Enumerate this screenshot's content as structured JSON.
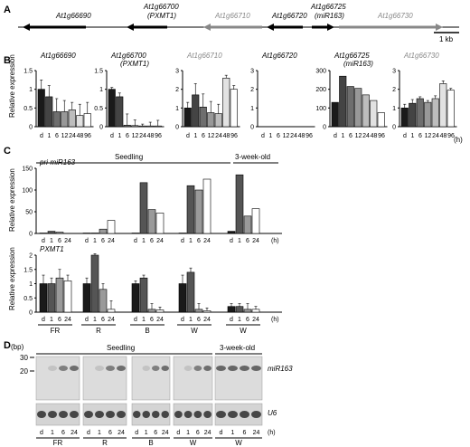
{
  "panels": {
    "A": "A",
    "B": "B",
    "C": "C",
    "D": "D"
  },
  "panelA": {
    "genes": [
      {
        "label": "At1g66690",
        "sub": "",
        "color": "#000000",
        "dir": "left"
      },
      {
        "label": "At1g66700",
        "sub": "(PXMT1)",
        "color": "#000000",
        "dir": "left"
      },
      {
        "label": "At1g66710",
        "sub": "",
        "color": "#888888",
        "dir": "left"
      },
      {
        "label": "At1g66720",
        "sub": "",
        "color": "#000000",
        "dir": "left"
      },
      {
        "label": "At1g66725",
        "sub": "(miR163)",
        "color": "#000000",
        "dir": "right"
      },
      {
        "label": "At1g66730",
        "sub": "",
        "color": "#888888",
        "dir": "right"
      }
    ],
    "scale_label": "1 kb"
  },
  "panelB": {
    "ylabel": "Relative expression",
    "xunit": "(h)",
    "time_labels": [
      "d",
      "1",
      "6",
      "12",
      "24",
      "48",
      "96"
    ],
    "bar_colors": [
      "#1a1a1a",
      "#444444",
      "#6e6e6e",
      "#989898",
      "#bdbdbd",
      "#e2e2e2",
      "#ffffff"
    ]
  },
  "panelC": {
    "top_headers": {
      "seedling": "Seedling",
      "three_week": "3-week-old"
    },
    "ylabel": "Relative expression",
    "xunit": "(h)",
    "time_labels": [
      "d",
      "1",
      "6",
      "24"
    ],
    "group_labels": [
      "FR",
      "R",
      "B",
      "W",
      "W"
    ],
    "bar_colors": [
      "#1a1a1a",
      "#555555",
      "#9a9a9a",
      "#ffffff"
    ],
    "chart_titles": [
      "pri-miR163",
      "PXMT1"
    ]
  },
  "panelD": {
    "bp_label": "(bp)",
    "bp_ticks": [
      "30",
      "20"
    ],
    "top_headers": {
      "seedling": "Seedling",
      "three_week": "3-week-old"
    },
    "blot_labels": [
      "miR163",
      "U6"
    ],
    "time_labels": [
      "d",
      "1",
      "6",
      "24"
    ],
    "group_labels": [
      "FR",
      "R",
      "B",
      "W",
      "W"
    ],
    "xunit": "(h)"
  },
  "chart_data": [
    {
      "type": "bar",
      "title": "At1g66690",
      "categories": [
        "d",
        "1",
        "6",
        "12",
        "24",
        "48",
        "96"
      ],
      "values": [
        1.0,
        0.8,
        0.4,
        0.4,
        0.45,
        0.3,
        0.35
      ],
      "errors": [
        0.25,
        0.3,
        0.35,
        0.3,
        0.2,
        0.3,
        0.3
      ],
      "ylim": [
        0,
        1.5
      ],
      "yticks": [
        "0",
        "0.5",
        "1",
        "1.5"
      ],
      "ylabel": "Relative expression"
    },
    {
      "type": "bar",
      "title": "At1g66700",
      "subtitle": "(PXMT1)",
      "categories": [
        "d",
        "1",
        "6",
        "12",
        "24",
        "48",
        "96"
      ],
      "values": [
        1.0,
        0.8,
        0.04,
        0.03,
        0.02,
        0.02,
        0.02
      ],
      "errors": [
        0.05,
        0.1,
        0.3,
        0.15,
        0.05,
        0.1,
        0.15
      ],
      "ylim": [
        0,
        1.5
      ],
      "yticks": [
        "0",
        "0.5",
        "1",
        "1.5"
      ]
    },
    {
      "type": "bar",
      "title": "At1g66710",
      "categories": [
        "d",
        "1",
        "6",
        "12",
        "24",
        "48",
        "96"
      ],
      "values": [
        1.0,
        1.7,
        1.05,
        0.75,
        0.7,
        2.6,
        2.0
      ],
      "errors": [
        0.3,
        0.6,
        0.7,
        0.6,
        0.5,
        0.15,
        0.2
      ],
      "ylim": [
        0,
        3
      ],
      "yticks": [
        "0",
        "1",
        "2",
        "3"
      ]
    },
    {
      "type": "bar",
      "title": "At1g66720",
      "categories": [
        "d",
        "1",
        "6",
        "12",
        "24",
        "48",
        "96"
      ],
      "values": [
        0,
        0,
        0,
        0,
        0,
        0,
        0
      ],
      "ylim": [
        0,
        3
      ],
      "yticks": [
        "0",
        "1",
        "2",
        "3"
      ]
    },
    {
      "type": "bar",
      "title": "At1g66725",
      "subtitle": "(miR163)",
      "categories": [
        "d",
        "1",
        "6",
        "12",
        "24",
        "48",
        "96"
      ],
      "values": [
        130,
        270,
        215,
        205,
        170,
        140,
        75
      ],
      "ylim": [
        0,
        300
      ],
      "yticks": [
        "0",
        "100",
        "200",
        "300"
      ]
    },
    {
      "type": "bar",
      "title": "At1g66730",
      "categories": [
        "d",
        "1",
        "6",
        "12",
        "24",
        "48",
        "96"
      ],
      "values": [
        1.0,
        1.25,
        1.5,
        1.3,
        1.5,
        2.3,
        1.95
      ],
      "errors": [
        0.2,
        0.2,
        0.1,
        0.1,
        0.15,
        0.15,
        0.1
      ],
      "ylim": [
        0,
        3
      ],
      "yticks": [
        "0",
        "1",
        "2",
        "3"
      ]
    },
    {
      "type": "bar",
      "title": "pri-miR163",
      "groups": [
        "FR",
        "R",
        "B",
        "W",
        "W"
      ],
      "categories": [
        "d",
        "1",
        "6",
        "24"
      ],
      "series": [
        {
          "values": [
            1,
            5,
            3,
            0
          ]
        },
        {
          "values": [
            1,
            1,
            10,
            30
          ]
        },
        {
          "values": [
            1,
            117,
            55,
            47
          ]
        },
        {
          "values": [
            1,
            110,
            100,
            125
          ]
        },
        {
          "values": [
            5,
            135,
            40,
            57
          ]
        }
      ],
      "ylim": [
        0,
        150
      ],
      "yticks": [
        "0",
        "50",
        "100",
        "150"
      ],
      "ylabel": "Relative expression"
    },
    {
      "type": "bar",
      "title": "PXMT1",
      "groups": [
        "FR",
        "R",
        "B",
        "W",
        "W"
      ],
      "categories": [
        "d",
        "1",
        "6",
        "24"
      ],
      "series": [
        {
          "values": [
            1.0,
            1.0,
            1.2,
            1.1
          ]
        },
        {
          "values": [
            1.0,
            2.0,
            0.8,
            0.1
          ]
        },
        {
          "values": [
            1.0,
            1.2,
            0.1,
            0.08
          ]
        },
        {
          "values": [
            1.0,
            1.4,
            0.1,
            0.05
          ]
        },
        {
          "values": [
            0.2,
            0.2,
            0.1,
            0.1
          ]
        }
      ],
      "errors": [
        [
          0.3,
          0.2,
          0.3,
          0.2
        ],
        [
          0.2,
          0.05,
          0.2,
          0.3
        ],
        [
          0.1,
          0.1,
          0.2,
          0.1
        ],
        [
          0.3,
          0.15,
          0.2,
          0.1
        ],
        [
          0.1,
          0.1,
          0.2,
          0.1
        ]
      ],
      "ylim": [
        0,
        2
      ],
      "yticks": [
        "0",
        "0.5",
        "1",
        "1.5",
        "2"
      ],
      "ylabel": "Relative expression"
    }
  ]
}
